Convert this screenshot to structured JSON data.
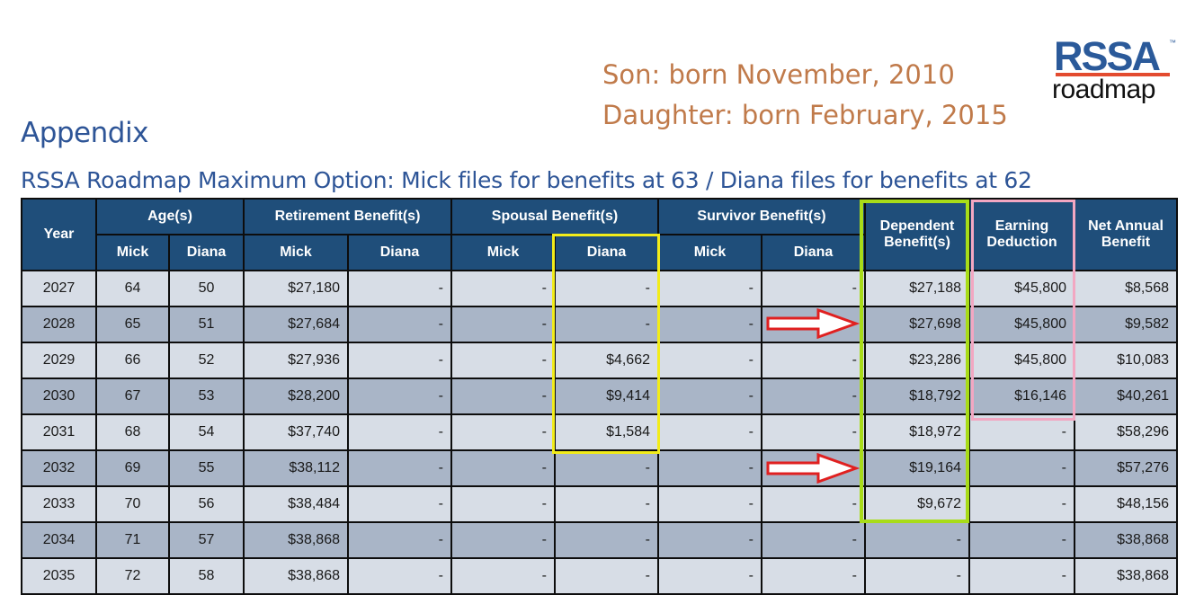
{
  "notes": {
    "son": "Son: born November, 2010",
    "daughter": "Daughter: born February, 2015"
  },
  "logo": {
    "top": "RSSA",
    "bottom": "roadmap",
    "tm": "™"
  },
  "title": "Appendix",
  "subtitle": "RSSA Roadmap Maximum Option: Mick files for benefits at 63 / Diana files for benefits at 62",
  "table": {
    "headers": {
      "year": "Year",
      "ages": "Age(s)",
      "retirement": "Retirement Benefit(s)",
      "spousal": "Spousal Benefit(s)",
      "survivor": "Survivor Benefit(s)",
      "dependent": "Dependent Benefit(s)",
      "earning": "Earning Deduction",
      "net": "Net Annual Benefit",
      "mick": "Mick",
      "diana": "Diana"
    },
    "rows": [
      [
        "2027",
        "64",
        "50",
        "$27,180",
        "-",
        "-",
        "-",
        "-",
        "-",
        "$27,188",
        "$45,800",
        "$8,568"
      ],
      [
        "2028",
        "65",
        "51",
        "$27,684",
        "-",
        "-",
        "-",
        "-",
        "-",
        "$27,698",
        "$45,800",
        "$9,582"
      ],
      [
        "2029",
        "66",
        "52",
        "$27,936",
        "-",
        "-",
        "$4,662",
        "-",
        "-",
        "$23,286",
        "$45,800",
        "$10,083"
      ],
      [
        "2030",
        "67",
        "53",
        "$28,200",
        "-",
        "-",
        "$9,414",
        "-",
        "-",
        "$18,792",
        "$16,146",
        "$40,261"
      ],
      [
        "2031",
        "68",
        "54",
        "$37,740",
        "-",
        "-",
        "$1,584",
        "-",
        "-",
        "$18,972",
        "-",
        "$58,296"
      ],
      [
        "2032",
        "69",
        "55",
        "$38,112",
        "-",
        "-",
        "-",
        "-",
        "-",
        "$19,164",
        "-",
        "$57,276"
      ],
      [
        "2033",
        "70",
        "56",
        "$38,484",
        "-",
        "-",
        "-",
        "-",
        "-",
        "$9,672",
        "-",
        "$48,156"
      ],
      [
        "2034",
        "71",
        "57",
        "$38,868",
        "-",
        "-",
        "-",
        "-",
        "-",
        "-",
        "-",
        "$38,868"
      ],
      [
        "2035",
        "72",
        "58",
        "$38,868",
        "-",
        "-",
        "-",
        "-",
        "-",
        "-",
        "-",
        "$38,868"
      ]
    ]
  },
  "colors": {
    "header_bg": "#1f4e7a",
    "row_light": "#d7dde6",
    "row_dark": "#a9b5c7",
    "highlight_yellow": "#f2ec1a",
    "highlight_green": "#a8dc18",
    "highlight_pink": "#f2a7c2",
    "arrow_red": "#e02020"
  }
}
